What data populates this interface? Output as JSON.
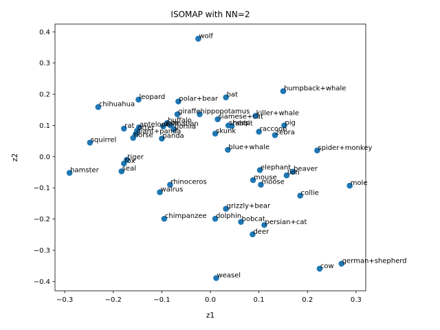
{
  "chart_data": {
    "type": "scatter",
    "title": "ISOMAP with NN=2",
    "xlabel": "z1",
    "ylabel": "z2",
    "xlim": [
      -0.32,
      0.32
    ],
    "ylim": [
      -0.43,
      0.425
    ],
    "xticks": [
      -0.3,
      -0.2,
      -0.1,
      0.0,
      0.1,
      0.2,
      0.3
    ],
    "xtick_labels": [
      "−0.3",
      "−0.2",
      "−0.1",
      "0.0",
      "0.1",
      "0.2",
      "0.3"
    ],
    "yticks": [
      -0.4,
      -0.3,
      -0.2,
      -0.1,
      0.0,
      0.1,
      0.2,
      0.3,
      0.4
    ],
    "ytick_labels": [
      "−0.4",
      "−0.3",
      "−0.2",
      "−0.1",
      "0.0",
      "0.1",
      "0.2",
      "0.3",
      "0.4"
    ],
    "grid": false,
    "marker_color": "#1f77b4",
    "points": [
      {
        "label": "wolf",
        "x": -0.025,
        "y": 0.378
      },
      {
        "label": "humpback+whale",
        "x": 0.15,
        "y": 0.21
      },
      {
        "label": "bat",
        "x": 0.032,
        "y": 0.19
      },
      {
        "label": "leopard",
        "x": -0.148,
        "y": 0.183
      },
      {
        "label": "polar+bear",
        "x": -0.066,
        "y": 0.177
      },
      {
        "label": "chihuahua",
        "x": -0.231,
        "y": 0.159
      },
      {
        "label": "giraffe",
        "x": -0.068,
        "y": 0.136
      },
      {
        "label": "hippopotamus",
        "x": -0.022,
        "y": 0.136
      },
      {
        "label": "killer+whale",
        "x": 0.093,
        "y": 0.131
      },
      {
        "label": "siamese+cat",
        "x": 0.015,
        "y": 0.12
      },
      {
        "label": "buffalo",
        "x": -0.089,
        "y": 0.108
      },
      {
        "label": "ox",
        "x": -0.082,
        "y": 0.1
      },
      {
        "label": "sheep",
        "x": 0.037,
        "y": 0.1
      },
      {
        "label": "rabbit",
        "x": 0.044,
        "y": 0.098
      },
      {
        "label": "pig",
        "x": 0.152,
        "y": 0.1
      },
      {
        "label": "dalmatian",
        "x": -0.097,
        "y": 0.097
      },
      {
        "label": "antelope",
        "x": -0.147,
        "y": 0.094
      },
      {
        "label": "rat",
        "x": -0.178,
        "y": 0.09
      },
      {
        "label": "gorilla",
        "x": -0.075,
        "y": 0.088
      },
      {
        "label": "otter",
        "x": -0.151,
        "y": 0.083
      },
      {
        "label": "raccoon",
        "x": 0.1,
        "y": 0.08
      },
      {
        "label": "skunk",
        "x": 0.01,
        "y": 0.074
      },
      {
        "label": "zebra",
        "x": 0.133,
        "y": 0.069
      },
      {
        "label": "giant+panda",
        "x": -0.154,
        "y": 0.072
      },
      {
        "label": "horse",
        "x": -0.159,
        "y": 0.06
      },
      {
        "label": "panda",
        "x": -0.1,
        "y": 0.058
      },
      {
        "label": "squirrel",
        "x": -0.248,
        "y": 0.045
      },
      {
        "label": "blue+whale",
        "x": 0.036,
        "y": 0.022
      },
      {
        "label": "spider+monkey",
        "x": 0.22,
        "y": 0.02
      },
      {
        "label": "tiger",
        "x": -0.172,
        "y": -0.01
      },
      {
        "label": "fox",
        "x": -0.178,
        "y": -0.022
      },
      {
        "label": "hamster",
        "x": -0.29,
        "y": -0.052
      },
      {
        "label": "seal",
        "x": -0.183,
        "y": -0.047
      },
      {
        "label": "elephant",
        "x": 0.102,
        "y": -0.043
      },
      {
        "label": "beaver",
        "x": 0.17,
        "y": -0.048
      },
      {
        "label": "lion",
        "x": 0.157,
        "y": -0.06
      },
      {
        "label": "mouse",
        "x": 0.088,
        "y": -0.075
      },
      {
        "label": "moose",
        "x": 0.104,
        "y": -0.09
      },
      {
        "label": "mole",
        "x": 0.287,
        "y": -0.093
      },
      {
        "label": "rhinoceros",
        "x": -0.083,
        "y": -0.09
      },
      {
        "label": "walrus",
        "x": -0.104,
        "y": -0.114
      },
      {
        "label": "collie",
        "x": 0.185,
        "y": -0.125
      },
      {
        "label": "grizzly+bear",
        "x": 0.032,
        "y": -0.167
      },
      {
        "label": "chimpanzee",
        "x": -0.095,
        "y": -0.199
      },
      {
        "label": "dolphin",
        "x": 0.01,
        "y": -0.199
      },
      {
        "label": "bobcat",
        "x": 0.063,
        "y": -0.209
      },
      {
        "label": "persian+cat",
        "x": 0.111,
        "y": -0.219
      },
      {
        "label": "deer",
        "x": 0.087,
        "y": -0.249
      },
      {
        "label": "german+shepherd",
        "x": 0.27,
        "y": -0.343
      },
      {
        "label": "cow",
        "x": 0.225,
        "y": -0.359
      },
      {
        "label": "weasel",
        "x": 0.012,
        "y": -0.389
      }
    ]
  }
}
